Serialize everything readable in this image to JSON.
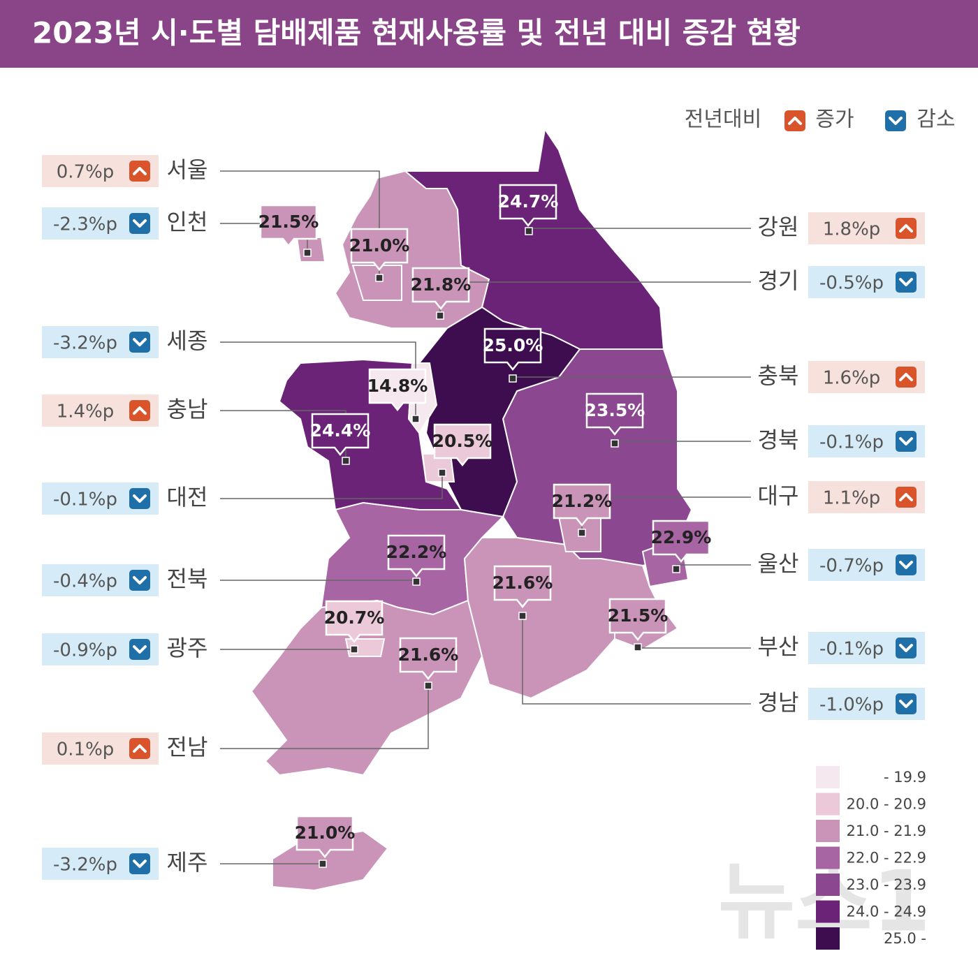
{
  "header": {
    "title": "2023년 시·도별 담배제품 현재사용률 및 전년 대비 증감 현황"
  },
  "legend": {
    "title": "전년대비",
    "increase": "증가",
    "decrease": "감소"
  },
  "scale": [
    {
      "label": "- 19.9",
      "color": "#f5e8ee"
    },
    {
      "label": "20.0 - 20.9",
      "color": "#ecc9d8"
    },
    {
      "label": "21.0 - 21.9",
      "color": "#c994b8"
    },
    {
      "label": "22.0 - 22.9",
      "color": "#a865a3"
    },
    {
      "label": "23.0 - 23.9",
      "color": "#8b4790"
    },
    {
      "label": "24.0 - 24.9",
      "color": "#6b2378"
    },
    {
      "label": "25.0 -",
      "color": "#3d0d4f"
    }
  ],
  "regions": [
    {
      "name": "서울",
      "rate": "21.0%",
      "change": "0.7%p",
      "direction": "up",
      "color": "#c994b8"
    },
    {
      "name": "인천",
      "rate": "21.5%",
      "change": "-2.3%p",
      "direction": "down",
      "color": "#c994b8"
    },
    {
      "name": "세종",
      "rate": "14.8%",
      "change": "-3.2%p",
      "direction": "down",
      "color": "#f5e8ee"
    },
    {
      "name": "충남",
      "rate": "24.4%",
      "change": "1.4%p",
      "direction": "up",
      "color": "#6b2378"
    },
    {
      "name": "대전",
      "rate": "20.5%",
      "change": "-0.1%p",
      "direction": "down",
      "color": "#ecc9d8"
    },
    {
      "name": "전북",
      "rate": "22.2%",
      "change": "-0.4%p",
      "direction": "down",
      "color": "#a865a3"
    },
    {
      "name": "광주",
      "rate": "20.7%",
      "change": "-0.9%p",
      "direction": "down",
      "color": "#ecc9d8"
    },
    {
      "name": "전남",
      "rate": "21.6%",
      "change": "0.1%p",
      "direction": "up",
      "color": "#c994b8"
    },
    {
      "name": "제주",
      "rate": "21.0%",
      "change": "-3.2%p",
      "direction": "down",
      "color": "#c994b8"
    },
    {
      "name": "강원",
      "rate": "24.7%",
      "change": "1.8%p",
      "direction": "up",
      "color": "#6b2378"
    },
    {
      "name": "경기",
      "rate": "21.8%",
      "change": "-0.5%p",
      "direction": "down",
      "color": "#c994b8"
    },
    {
      "name": "충북",
      "rate": "25.0%",
      "change": "1.6%p",
      "direction": "up",
      "color": "#3d0d4f"
    },
    {
      "name": "경북",
      "rate": "23.5%",
      "change": "-0.1%p",
      "direction": "down",
      "color": "#8b4790"
    },
    {
      "name": "대구",
      "rate": "21.2%",
      "change": "1.1%p",
      "direction": "up",
      "color": "#c994b8"
    },
    {
      "name": "울산",
      "rate": "22.9%",
      "change": "-0.7%p",
      "direction": "down",
      "color": "#a865a3"
    },
    {
      "name": "부산",
      "rate": "21.5%",
      "change": "-0.1%p",
      "direction": "down",
      "color": "#c994b8"
    },
    {
      "name": "경남",
      "rate": "21.6%",
      "change": "-1.0%p",
      "direction": "down",
      "color": "#c994b8"
    }
  ],
  "watermark": "뉴스1"
}
